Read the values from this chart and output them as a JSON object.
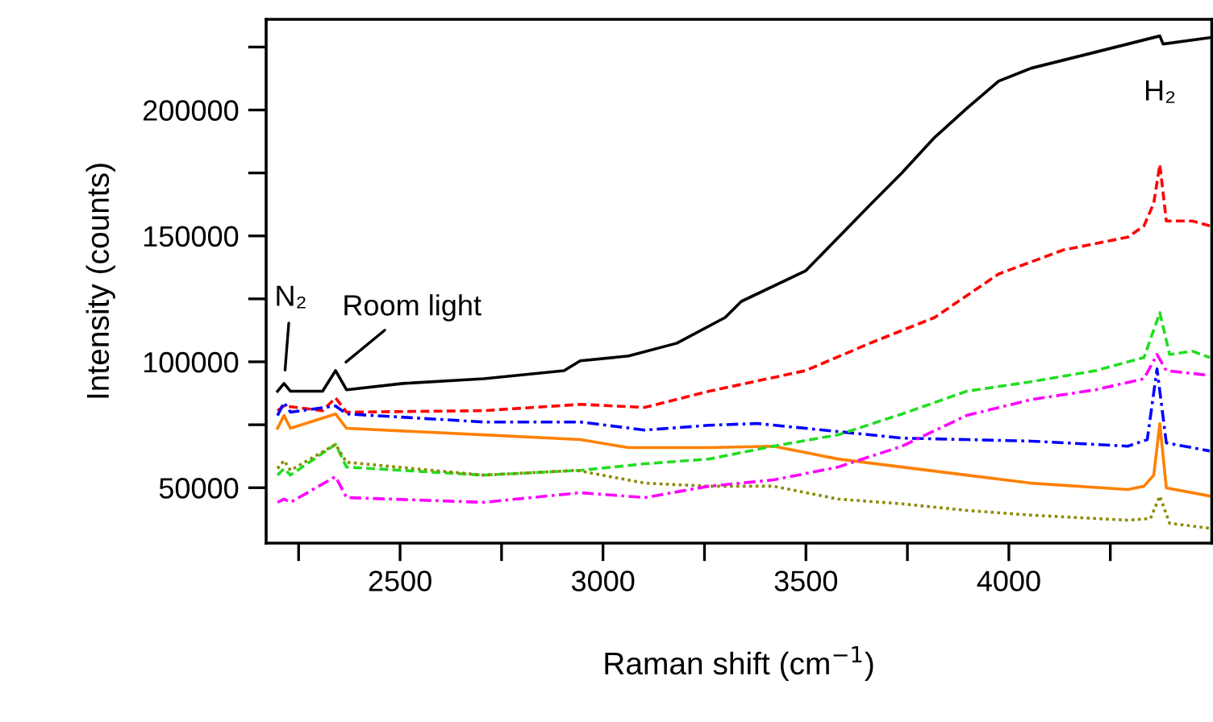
{
  "chart_data": {
    "type": "line",
    "xlabel": "Raman shift (cm$^{−1}$)",
    "ylabel": "Intensity (counts)",
    "xlim": [
      2170,
      4500
    ],
    "ylim": [
      28000,
      236000
    ],
    "xticks": [
      {
        "value": 2250,
        "label": null
      },
      2500,
      {
        "value": 2750,
        "label": null
      },
      3000,
      {
        "value": 3250,
        "label": null
      },
      3500,
      {
        "value": 3750,
        "label": null
      },
      4000,
      {
        "value": 4250,
        "label": null
      }
    ],
    "yticks": [
      50000,
      {
        "value": 75000,
        "label": null
      },
      100000,
      {
        "value": 125000,
        "label": null
      },
      150000,
      {
        "value": 175000,
        "label": null
      },
      200000,
      {
        "value": 225000,
        "label": null
      }
    ],
    "grid": false,
    "legend": false,
    "marker": "none",
    "annotations": [
      {
        "text": "N₂",
        "x": 2214,
        "y": 91400
      },
      {
        "text": "Room light",
        "x": 2341,
        "y": 96500
      },
      {
        "text": "H₂",
        "x": 4372,
        "y": 178300
      }
    ],
    "series": [
      {
        "color": "#000000",
        "line_style": "solid",
        "x": [
          2198,
          2214,
          2230,
          2309,
          2341,
          2368,
          2507,
          2706,
          2904,
          2944,
          3063,
          3182,
          3301,
          3341,
          3499,
          3658,
          3737,
          3817,
          3896,
          3975,
          4055,
          4214,
          4372,
          4380,
          4495
        ],
        "values": [
          88300,
          91400,
          88300,
          88300,
          96500,
          88900,
          91400,
          93300,
          96500,
          100400,
          102300,
          107400,
          117600,
          124000,
          136100,
          162300,
          175100,
          189100,
          200600,
          211500,
          216600,
          223000,
          229400,
          226200,
          228700
        ]
      },
      {
        "color": "#ff0000",
        "line_style": "dashed",
        "x": [
          2198,
          2214,
          2309,
          2341,
          2368,
          2706,
          2944,
          3103,
          3261,
          3499,
          3658,
          3817,
          3975,
          4134,
          4293,
          4333,
          4357,
          4372,
          4388,
          4452,
          4495
        ],
        "values": [
          80600,
          82500,
          80600,
          85700,
          80000,
          80600,
          83100,
          81900,
          88300,
          96500,
          107400,
          117600,
          134900,
          144400,
          149500,
          154000,
          163000,
          178300,
          155900,
          155900,
          154000
        ]
      },
      {
        "color": "#0000ff",
        "line_style": "dashdot",
        "x": [
          2198,
          2214,
          2230,
          2341,
          2368,
          2706,
          2944,
          3103,
          3261,
          3380,
          3579,
          3737,
          3896,
          4055,
          4293,
          4341,
          4365,
          4388,
          4495
        ],
        "values": [
          78700,
          83800,
          80000,
          82500,
          79300,
          76100,
          76100,
          72900,
          74800,
          75500,
          72300,
          69700,
          69100,
          68500,
          66500,
          69100,
          97200,
          67800,
          64600
        ]
      },
      {
        "color": "#ff8000",
        "line_style": "solid",
        "x": [
          2198,
          2214,
          2230,
          2341,
          2368,
          2706,
          2944,
          3063,
          3261,
          3420,
          3579,
          3737,
          3896,
          4055,
          4293,
          4333,
          4357,
          4372,
          4388,
          4495
        ],
        "values": [
          73600,
          78700,
          73600,
          79300,
          73600,
          71000,
          69100,
          65900,
          65900,
          66500,
          61400,
          58200,
          55000,
          51800,
          49300,
          50600,
          55000,
          75500,
          49900,
          46700
        ]
      },
      {
        "color": "#22dd22",
        "line_style": "dashed",
        "x": [
          2198,
          2214,
          2230,
          2341,
          2368,
          2706,
          2944,
          3103,
          3261,
          3420,
          3579,
          3737,
          3896,
          4055,
          4214,
          4333,
          4372,
          4396,
          4452,
          4495
        ],
        "values": [
          55000,
          57600,
          55000,
          67200,
          58200,
          55000,
          56900,
          59500,
          61400,
          66500,
          71000,
          79300,
          88300,
          92100,
          96500,
          101700,
          119500,
          102900,
          104200,
          101700
        ]
      },
      {
        "color": "#8b8b00",
        "line_style": "dotted",
        "x": [
          2198,
          2214,
          2230,
          2341,
          2368,
          2706,
          2936,
          3103,
          3261,
          3420,
          3579,
          3737,
          3896,
          4055,
          4293,
          4349,
          4372,
          4396,
          4495
        ],
        "values": [
          57600,
          60800,
          56900,
          67200,
          60100,
          55000,
          56900,
          51800,
          50600,
          50600,
          45500,
          43600,
          41000,
          39100,
          37100,
          37800,
          46700,
          35900,
          33900
        ]
      },
      {
        "color": "#ff00ff",
        "line_style": "dashdot",
        "x": [
          2198,
          2214,
          2230,
          2341,
          2368,
          2706,
          2944,
          3103,
          3261,
          3420,
          3579,
          3737,
          3896,
          4055,
          4214,
          4333,
          4365,
          4388,
          4495
        ],
        "values": [
          44200,
          45500,
          44200,
          54400,
          46100,
          44200,
          48000,
          46100,
          50600,
          53100,
          58200,
          66500,
          78700,
          85000,
          88900,
          93300,
          102900,
          96500,
          94600
        ]
      }
    ]
  }
}
